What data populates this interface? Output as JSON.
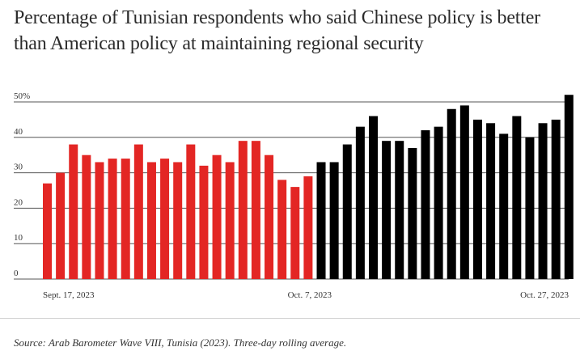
{
  "title": "Percentage of Tunisian respondents who said Chinese policy is better than American policy at maintaining regional security",
  "source": "Source: Arab Barometer Wave VIII, Tunisia (2023). Three-day rolling average.",
  "colors": {
    "before": "#e32624",
    "after": "#000000",
    "grid": "#555555"
  },
  "chart_data": {
    "type": "bar",
    "title": "Percentage of Tunisian respondents who said Chinese policy is better than American policy at maintaining regional security",
    "xlabel": "",
    "ylabel": "",
    "ylim": [
      0,
      50
    ],
    "y_ticks": [
      "0",
      "10",
      "20",
      "30",
      "40",
      "50%"
    ],
    "x_tick_labels": [
      "Sept. 17, 2023",
      "Oct. 7, 2023",
      "Oct. 27, 2023"
    ],
    "grid": true,
    "series": [
      {
        "values": [
          27,
          30,
          38,
          35,
          33,
          34,
          34,
          38,
          33,
          34,
          33,
          38,
          32,
          35,
          33,
          39,
          39,
          35,
          28,
          26,
          29
        ],
        "color": "#e32624"
      },
      {
        "values": [
          33,
          33,
          38,
          43,
          46,
          39,
          39,
          37,
          42,
          43,
          48,
          49,
          45,
          44,
          41,
          46,
          40,
          44,
          45,
          52
        ],
        "color": "#000000"
      }
    ]
  }
}
